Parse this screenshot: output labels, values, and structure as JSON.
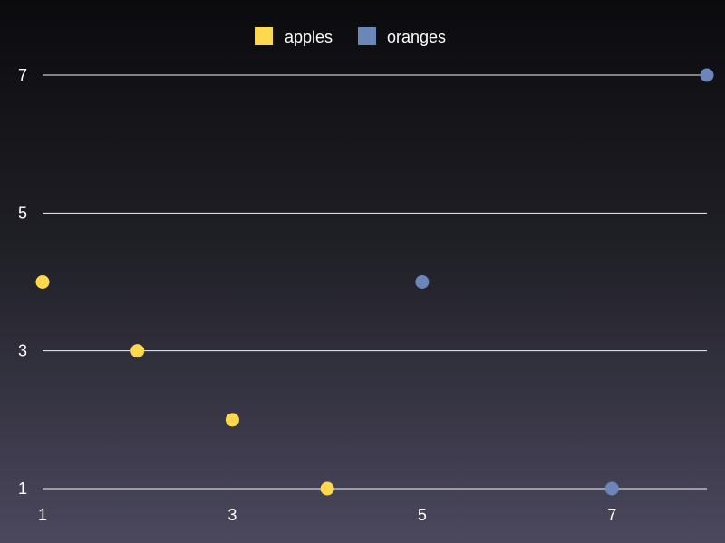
{
  "chart_data": {
    "type": "scatter",
    "title": "",
    "xlabel": "",
    "ylabel": "",
    "xlim": [
      1,
      8
    ],
    "ylim": [
      1,
      7
    ],
    "x_ticks": [
      "1",
      "3",
      "5",
      "7"
    ],
    "y_ticks": [
      "1",
      "3",
      "5",
      "7"
    ],
    "grid": "horizontal",
    "legend_position": "top-center",
    "series": [
      {
        "name": "apples",
        "color": "#ffd84d",
        "points": [
          {
            "x": 1,
            "y": 4
          },
          {
            "x": 2,
            "y": 3
          },
          {
            "x": 3,
            "y": 2
          },
          {
            "x": 4,
            "y": 1
          }
        ]
      },
      {
        "name": "oranges",
        "color": "#6b86b8",
        "points": [
          {
            "x": 5,
            "y": 4
          },
          {
            "x": 7,
            "y": 1
          },
          {
            "x": 8,
            "y": 7
          }
        ]
      }
    ]
  }
}
